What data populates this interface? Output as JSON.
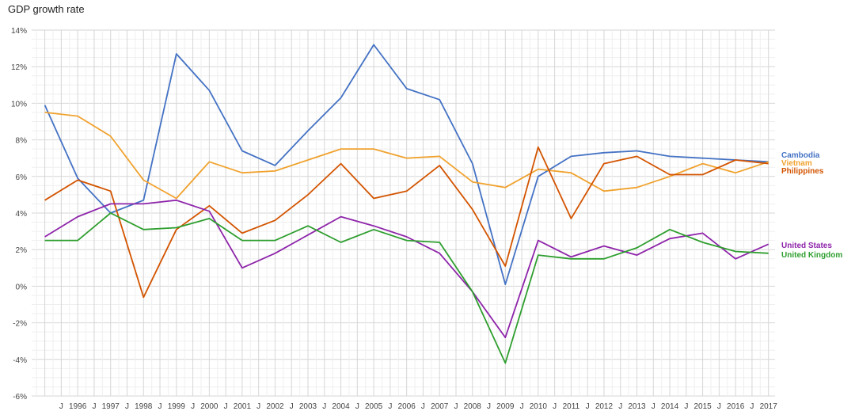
{
  "chart_data": {
    "type": "line",
    "title": "GDP growth rate",
    "xlabel": "",
    "ylabel": "",
    "ylim": [
      -6,
      14
    ],
    "y_ticks": [
      -6,
      -4,
      -2,
      0,
      2,
      4,
      6,
      8,
      10,
      12,
      14
    ],
    "y_tick_labels": [
      "-6%",
      "-4%",
      "-2%",
      "0%",
      "2%",
      "4%",
      "6%",
      "8%",
      "10%",
      "12%",
      "14%"
    ],
    "x_range": [
      1994.6,
      2017.2
    ],
    "x": [
      1995,
      1996,
      1997,
      1998,
      1999,
      2000,
      2001,
      2002,
      2003,
      2004,
      2005,
      2006,
      2007,
      2008,
      2009,
      2010,
      2011,
      2012,
      2013,
      2014,
      2015,
      2016,
      2017
    ],
    "x_tick_labels": [
      {
        "x": 1995.5,
        "label": "J"
      },
      {
        "x": 1996,
        "label": "1996"
      },
      {
        "x": 1996.5,
        "label": "J"
      },
      {
        "x": 1997,
        "label": "1997"
      },
      {
        "x": 1997.5,
        "label": "J"
      },
      {
        "x": 1998,
        "label": "1998"
      },
      {
        "x": 1998.5,
        "label": "J"
      },
      {
        "x": 1999,
        "label": "1999"
      },
      {
        "x": 1999.5,
        "label": "J"
      },
      {
        "x": 2000,
        "label": "2000"
      },
      {
        "x": 2000.5,
        "label": "J"
      },
      {
        "x": 2001,
        "label": "2001"
      },
      {
        "x": 2001.5,
        "label": "J"
      },
      {
        "x": 2002,
        "label": "2002"
      },
      {
        "x": 2002.5,
        "label": "J"
      },
      {
        "x": 2003,
        "label": "2003"
      },
      {
        "x": 2003.5,
        "label": "J"
      },
      {
        "x": 2004,
        "label": "2004"
      },
      {
        "x": 2004.5,
        "label": "J"
      },
      {
        "x": 2005,
        "label": "2005"
      },
      {
        "x": 2005.5,
        "label": "J"
      },
      {
        "x": 2006,
        "label": "2006"
      },
      {
        "x": 2006.5,
        "label": "J"
      },
      {
        "x": 2007,
        "label": "2007"
      },
      {
        "x": 2007.5,
        "label": "J"
      },
      {
        "x": 2008,
        "label": "2008"
      },
      {
        "x": 2008.5,
        "label": "J"
      },
      {
        "x": 2009,
        "label": "2009"
      },
      {
        "x": 2009.5,
        "label": "J"
      },
      {
        "x": 2010,
        "label": "2010"
      },
      {
        "x": 2010.5,
        "label": "J"
      },
      {
        "x": 2011,
        "label": "2011"
      },
      {
        "x": 2011.5,
        "label": "J"
      },
      {
        "x": 2012,
        "label": "2012"
      },
      {
        "x": 2012.5,
        "label": "J"
      },
      {
        "x": 2013,
        "label": "2013"
      },
      {
        "x": 2013.5,
        "label": "J"
      },
      {
        "x": 2014,
        "label": "2014"
      },
      {
        "x": 2014.5,
        "label": "J"
      },
      {
        "x": 2015,
        "label": "2015"
      },
      {
        "x": 2015.5,
        "label": "J"
      },
      {
        "x": 2016,
        "label": "2016"
      },
      {
        "x": 2016.5,
        "label": "J"
      },
      {
        "x": 2017,
        "label": "2017"
      }
    ],
    "grid": true,
    "legend_position": "right",
    "series": [
      {
        "name": "Cambodia",
        "color": "#4472c4",
        "values": [
          9.9,
          5.9,
          4.0,
          4.7,
          12.7,
          10.7,
          7.4,
          6.6,
          8.5,
          10.3,
          13.2,
          10.8,
          10.2,
          6.7,
          0.1,
          6.0,
          7.1,
          7.3,
          7.4,
          7.1,
          7.0,
          6.9,
          6.8
        ]
      },
      {
        "name": "Vietnam",
        "color": "#f0a22e",
        "values": [
          9.5,
          9.3,
          8.2,
          5.8,
          4.8,
          6.8,
          6.2,
          6.3,
          6.9,
          7.5,
          7.5,
          7.0,
          7.1,
          5.7,
          5.4,
          6.4,
          6.2,
          5.2,
          5.4,
          6.0,
          6.7,
          6.2,
          6.8
        ]
      },
      {
        "name": "Philippines",
        "color": "#d35400",
        "values": [
          4.7,
          5.8,
          5.2,
          -0.6,
          3.1,
          4.4,
          2.9,
          3.6,
          5.0,
          6.7,
          4.8,
          5.2,
          6.6,
          4.2,
          1.1,
          7.6,
          3.7,
          6.7,
          7.1,
          6.1,
          6.1,
          6.9,
          6.7
        ]
      },
      {
        "name": "United States",
        "color": "#8e24aa",
        "values": [
          2.7,
          3.8,
          4.5,
          4.5,
          4.7,
          4.1,
          1.0,
          1.8,
          2.8,
          3.8,
          3.3,
          2.7,
          1.8,
          -0.3,
          -2.8,
          2.5,
          1.6,
          2.2,
          1.7,
          2.6,
          2.9,
          1.5,
          2.3
        ]
      },
      {
        "name": "United Kingdom",
        "color": "#2e9e2e",
        "values": [
          2.5,
          2.5,
          4.0,
          3.1,
          3.2,
          3.7,
          2.5,
          2.5,
          3.3,
          2.4,
          3.1,
          2.5,
          2.4,
          -0.3,
          -4.2,
          1.7,
          1.5,
          1.5,
          2.1,
          3.1,
          2.4,
          1.9,
          1.8
        ]
      }
    ]
  }
}
